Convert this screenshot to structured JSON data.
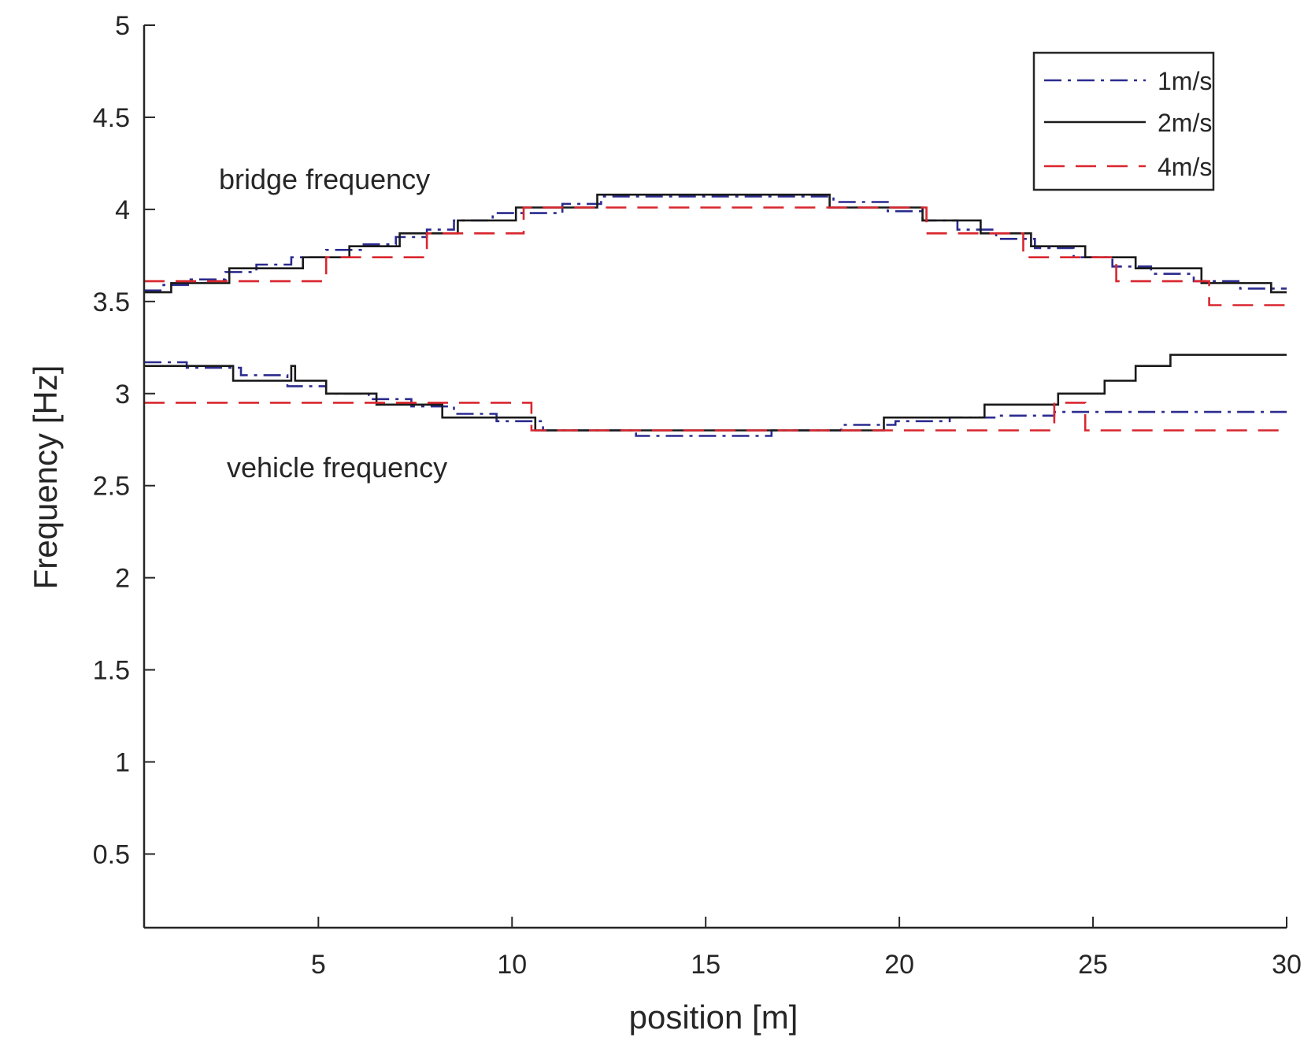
{
  "chart_data": {
    "type": "line",
    "title": "",
    "xlabel": "position [m]",
    "ylabel": "Frequency [Hz]",
    "xlim": [
      0.5,
      30
    ],
    "ylim": [
      0.1,
      5
    ],
    "xticks": [
      5,
      10,
      15,
      20,
      25,
      30
    ],
    "yticks": [
      0.5,
      1,
      1.5,
      2,
      2.5,
      3,
      3.5,
      4,
      4.5,
      5
    ],
    "xtick_labels": [
      "5",
      "10",
      "15",
      "20",
      "25",
      "30"
    ],
    "ytick_labels": [
      "0.5",
      "1",
      "1.5",
      "2",
      "2.5",
      "3",
      "3.5",
      "4",
      "4.5",
      "5"
    ],
    "grid": false,
    "legend_position": "top-right",
    "annotations": [
      {
        "text": "bridge frequency",
        "x": 2.5,
        "y": 4.15
      },
      {
        "text": "vehicle frequency",
        "x": 2.8,
        "y": 2.58
      }
    ],
    "series": [
      {
        "name": "1m/s",
        "style": "dashdot",
        "color": "#2b2b8f",
        "groups": [
          {
            "label": "bridge",
            "x": [
              0.5,
              1.0,
              1.0,
              1.7,
              1.7,
              2.6,
              2.6,
              3.4,
              3.4,
              4.3,
              4.3,
              5.2,
              5.2,
              6.1,
              6.1,
              7.0,
              7.0,
              7.8,
              7.8,
              8.5,
              8.5,
              9.5,
              9.5,
              11.3,
              11.3,
              12.3,
              12.3,
              18.3,
              18.3,
              19.7,
              19.7,
              20.6,
              20.6,
              21.5,
              21.5,
              22.5,
              22.5,
              23.5,
              23.5,
              24.5,
              24.5,
              25.5,
              25.5,
              26.5,
              26.5,
              27.6,
              27.6,
              28.8,
              28.8,
              30.0
            ],
            "y": [
              3.56,
              3.56,
              3.59,
              3.59,
              3.62,
              3.62,
              3.66,
              3.66,
              3.7,
              3.7,
              3.74,
              3.74,
              3.78,
              3.78,
              3.81,
              3.81,
              3.85,
              3.85,
              3.89,
              3.89,
              3.94,
              3.94,
              3.98,
              3.98,
              4.03,
              4.03,
              4.07,
              4.07,
              4.04,
              4.04,
              3.99,
              3.99,
              3.94,
              3.94,
              3.89,
              3.89,
              3.84,
              3.84,
              3.79,
              3.79,
              3.74,
              3.74,
              3.69,
              3.69,
              3.65,
              3.65,
              3.61,
              3.61,
              3.57,
              3.57
            ]
          },
          {
            "label": "vehicle",
            "x": [
              0.5,
              1.6,
              1.6,
              3.0,
              3.0,
              4.2,
              4.2,
              5.2,
              5.2,
              6.3,
              6.3,
              7.4,
              7.4,
              8.5,
              8.5,
              9.6,
              9.6,
              10.8,
              10.8,
              13.2,
              13.2,
              16.7,
              16.7,
              18.5,
              18.5,
              19.9,
              19.9,
              21.3,
              21.3,
              22.5,
              22.5,
              24.0,
              24.0,
              30.0
            ],
            "y": [
              3.17,
              3.17,
              3.14,
              3.14,
              3.1,
              3.1,
              3.04,
              3.04,
              3.0,
              3.0,
              2.97,
              2.97,
              2.93,
              2.93,
              2.89,
              2.89,
              2.85,
              2.85,
              2.8,
              2.8,
              2.77,
              2.77,
              2.8,
              2.8,
              2.83,
              2.83,
              2.85,
              2.85,
              2.87,
              2.87,
              2.88,
              2.88,
              2.9,
              2.9
            ]
          }
        ]
      },
      {
        "name": "2m/s",
        "style": "solid",
        "color": "#1a1a1a",
        "groups": [
          {
            "label": "bridge",
            "x": [
              0.5,
              1.2,
              1.2,
              2.7,
              2.7,
              4.6,
              4.6,
              5.8,
              5.8,
              7.1,
              7.1,
              8.6,
              8.6,
              10.1,
              10.1,
              12.2,
              12.2,
              18.2,
              18.2,
              20.6,
              20.6,
              22.1,
              22.1,
              23.4,
              23.4,
              24.8,
              24.8,
              26.1,
              26.1,
              27.8,
              27.8,
              29.6,
              29.6,
              30.0
            ],
            "y": [
              3.55,
              3.55,
              3.6,
              3.6,
              3.68,
              3.68,
              3.74,
              3.74,
              3.8,
              3.8,
              3.87,
              3.87,
              3.94,
              3.94,
              4.01,
              4.01,
              4.08,
              4.08,
              4.01,
              4.01,
              3.94,
              3.94,
              3.87,
              3.87,
              3.8,
              3.8,
              3.74,
              3.74,
              3.68,
              3.68,
              3.6,
              3.6,
              3.55,
              3.55
            ]
          },
          {
            "label": "vehicle",
            "x": [
              0.5,
              2.8,
              2.8,
              4.3,
              4.3,
              4.4,
              4.4,
              5.2,
              5.2,
              6.5,
              6.5,
              8.2,
              8.2,
              10.6,
              10.6,
              19.6,
              19.6,
              22.2,
              22.2,
              24.1,
              24.1,
              25.3,
              25.3,
              26.1,
              26.1,
              27.0,
              27.0,
              30.0
            ],
            "y": [
              3.15,
              3.15,
              3.07,
              3.07,
              3.15,
              3.15,
              3.07,
              3.07,
              3.0,
              3.0,
              2.94,
              2.94,
              2.87,
              2.87,
              2.8,
              2.8,
              2.87,
              2.87,
              2.94,
              2.94,
              3.0,
              3.0,
              3.07,
              3.07,
              3.15,
              3.15,
              3.21,
              3.21
            ]
          }
        ]
      },
      {
        "name": "4m/s",
        "style": "dashed",
        "color": "#d9262e",
        "groups": [
          {
            "label": "bridge",
            "x": [
              0.5,
              5.2,
              5.2,
              7.8,
              7.8,
              10.3,
              10.3,
              20.7,
              20.7,
              23.2,
              23.2,
              25.6,
              25.6,
              28.0,
              28.0,
              30.0
            ],
            "y": [
              3.61,
              3.61,
              3.74,
              3.74,
              3.87,
              3.87,
              4.01,
              4.01,
              3.87,
              3.87,
              3.74,
              3.74,
              3.61,
              3.61,
              3.48,
              3.48
            ]
          },
          {
            "label": "vehicle",
            "x": [
              0.5,
              10.5,
              10.5,
              24.0,
              24.0,
              24.8,
              24.8,
              30.0
            ],
            "y": [
              2.95,
              2.95,
              2.8,
              2.8,
              2.95,
              2.95,
              2.8,
              2.8
            ]
          }
        ]
      }
    ]
  },
  "colors": {
    "axis": "#262626",
    "series_1": "#2b2b8f",
    "series_2": "#1a1a1a",
    "series_3": "#d9262e"
  }
}
